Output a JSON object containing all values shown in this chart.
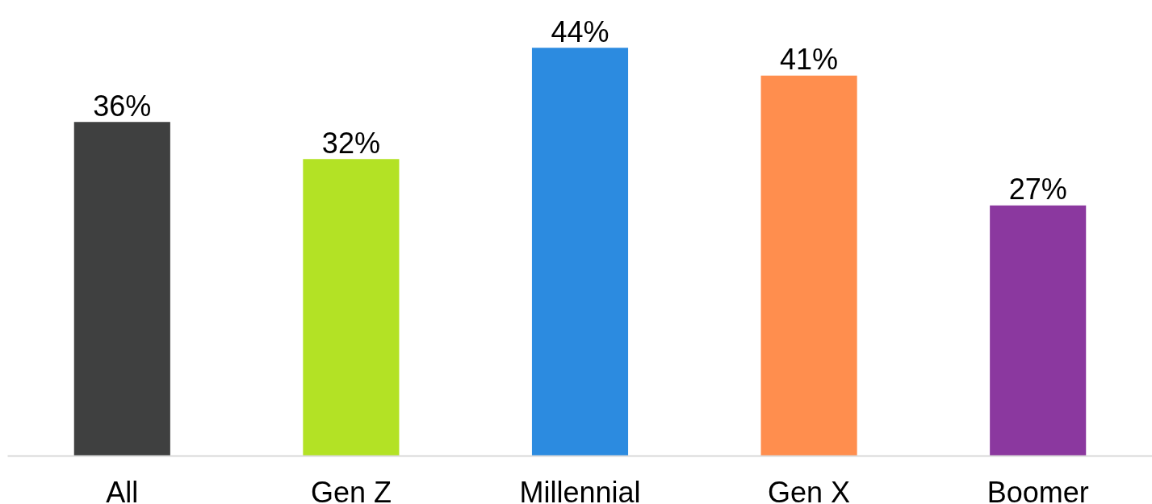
{
  "chart_data": {
    "type": "bar",
    "categories": [
      "All",
      "Gen Z",
      "Millennial",
      "Gen X",
      "Boomer"
    ],
    "values": [
      36,
      32,
      44,
      41,
      27
    ],
    "colors": [
      "#3f4040",
      "#b3e225",
      "#2c8be0",
      "#ff8e4e",
      "#8b389f"
    ],
    "value_labels": [
      "36%",
      "32%",
      "44%",
      "41%",
      "27%"
    ],
    "tick_labels": "x"
  }
}
